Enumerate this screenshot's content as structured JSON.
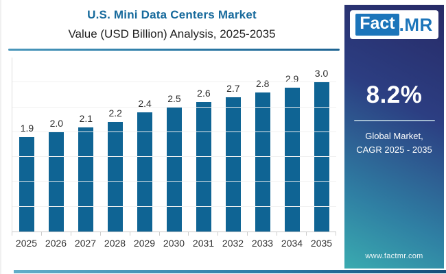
{
  "header": {
    "title": "U.S. Mini Data Centers Market",
    "subtitle": "Value (USD Billion) Analysis, 2025-2035"
  },
  "chart_data": {
    "type": "bar",
    "categories": [
      "2025",
      "2026",
      "2027",
      "2028",
      "2029",
      "2030",
      "2031",
      "2032",
      "2033",
      "2034",
      "2035"
    ],
    "values": [
      1.9,
      2.0,
      2.1,
      2.2,
      2.4,
      2.5,
      2.6,
      2.7,
      2.8,
      2.9,
      3.0
    ],
    "title": "U.S. Mini Data Centers Market",
    "subtitle": "Value (USD Billion) Analysis, 2025-2035",
    "xlabel": "",
    "ylabel": "",
    "ylim": [
      0,
      3.5
    ],
    "grid": true,
    "gridline_step": 0.5,
    "legend": "none",
    "data_labels": true,
    "bar_color": "#0f6494"
  },
  "sidebar": {
    "logo_fact": "Fact",
    "logo_mr": ".MR",
    "cagr": "8.2%",
    "caption_line1": "Global Market,",
    "caption_line2": "CAGR 2025 - 2035",
    "website": "www.factmr.com"
  },
  "colors": {
    "title": "#176a9c",
    "bar": "#0f6494",
    "divider": "#2e7da8",
    "sidebar_top": "#272a66",
    "sidebar_bottom": "#3aabb0",
    "logo_blue": "#1c75ba"
  }
}
